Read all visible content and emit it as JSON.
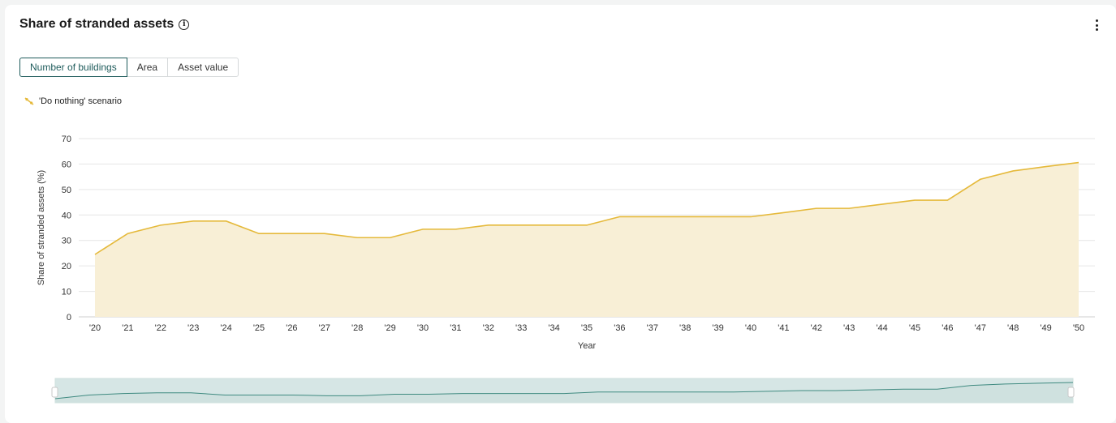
{
  "header": {
    "title": "Share of stranded assets",
    "info_icon": "info-icon",
    "menu_icon": "kebab-menu-icon"
  },
  "tabs": [
    {
      "label": "Number of buildings",
      "active": true
    },
    {
      "label": "Area",
      "active": false
    },
    {
      "label": "Asset value",
      "active": false
    }
  ],
  "legend": {
    "label": "'Do nothing' scenario",
    "icon": "line-series-icon",
    "color": "#e5b93a"
  },
  "colors": {
    "line": "#e5b93a",
    "area": "#f8efd6",
    "grid": "#e6e6e6",
    "navigator_fill": "#d6e6e5",
    "navigator_line": "#3f8a80",
    "active_tab": "#1e5b5b"
  },
  "chart_data": {
    "type": "area",
    "title": "",
    "xlabel": "Year",
    "ylabel": "Share of stranded assets (%)",
    "ylim": [
      0,
      70
    ],
    "yticks": [
      0,
      10,
      20,
      30,
      40,
      50,
      60,
      70
    ],
    "categories": [
      "'20",
      "'21",
      "'22",
      "'23",
      "'24",
      "'25",
      "'26",
      "'27",
      "'28",
      "'29",
      "'30",
      "'31",
      "'32",
      "'33",
      "'34",
      "'35",
      "'36",
      "'37",
      "'38",
      "'39",
      "'40",
      "'41",
      "'42",
      "'43",
      "'44",
      "'45",
      "'46",
      "'47",
      "'48",
      "'49",
      "'50"
    ],
    "series": [
      {
        "name": "'Do nothing' scenario",
        "values": [
          24.5,
          32.7,
          36.0,
          37.6,
          37.6,
          32.7,
          32.7,
          32.7,
          31.1,
          31.1,
          34.4,
          34.4,
          36.0,
          36.0,
          36.0,
          36.0,
          39.3,
          39.3,
          39.3,
          39.3,
          39.3,
          40.9,
          42.6,
          42.6,
          44.2,
          45.8,
          45.8,
          54.0,
          57.3,
          59.0,
          60.6
        ]
      }
    ],
    "grid": true,
    "legend_position": "top-left",
    "navigator": true
  }
}
